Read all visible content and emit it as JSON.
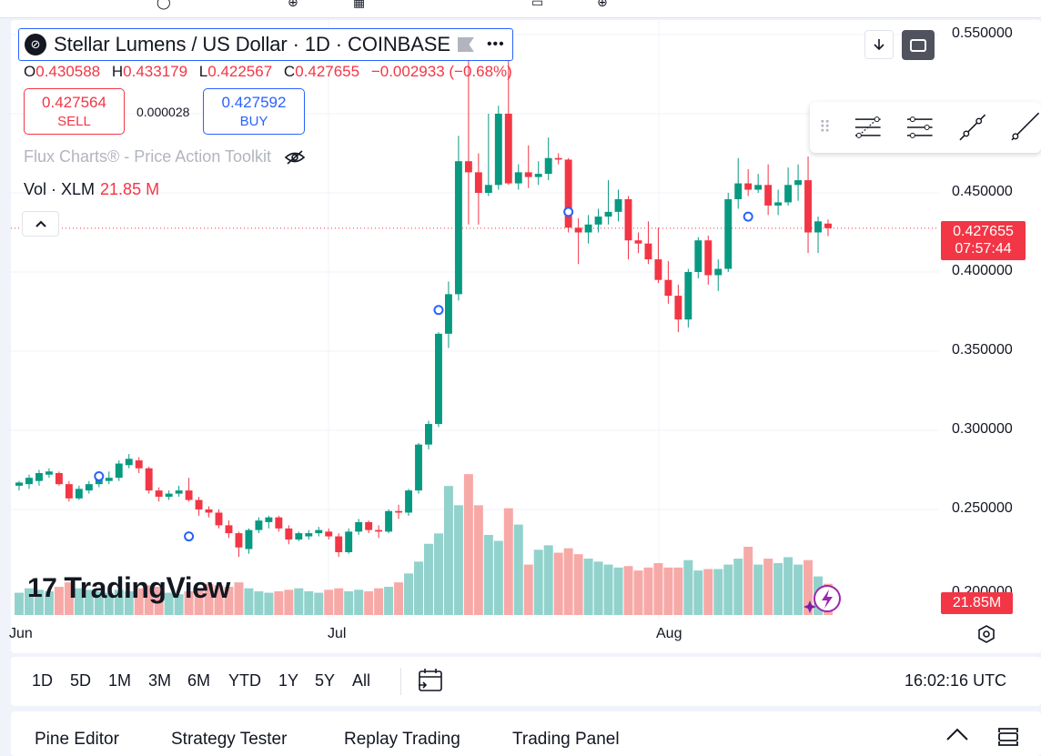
{
  "symbol": {
    "title": "Stellar Lumens / US Dollar · 1D · COINBASE",
    "logo_icon": "stellar-logo-icon",
    "flag_icon": "flag-icon",
    "more_icon": "more-dots-icon"
  },
  "ohlc": {
    "o_label": "O",
    "o_value": "0.430588",
    "h_label": "H",
    "h_value": "0.433179",
    "l_label": "L",
    "l_value": "0.422567",
    "c_label": "C",
    "c_value": "0.427655",
    "change": "−0.002933 (−0.68%)"
  },
  "trade": {
    "sell_price": "0.427564",
    "sell_label": "SELL",
    "spread": "0.000028",
    "buy_price": "0.427592",
    "buy_label": "BUY"
  },
  "indicator": {
    "name": "Flux Charts® - Price Action Toolkit",
    "hide_icon": "eye-crossed-icon"
  },
  "volume": {
    "label": "Vol · XLM",
    "value": "21.85 M"
  },
  "brand": {
    "name": "TradingView",
    "mark": "17"
  },
  "price_axis": {
    "labels": [
      "0.550000",
      "0.450000",
      "0.400000",
      "0.350000",
      "0.300000",
      "0.250000",
      "0.200000"
    ],
    "last_price": "0.427655",
    "countdown": "07:57:44",
    "volume_tag": "21.85M"
  },
  "time_axis": {
    "labels": [
      "Jun",
      "Jul",
      "Aug"
    ]
  },
  "periods": [
    "1D",
    "5D",
    "1M",
    "3M",
    "6M",
    "YTD",
    "1Y",
    "5Y",
    "All"
  ],
  "clock": "16:02:16 UTC",
  "bottom_tabs": [
    "Pine Editor",
    "Strategy Tester",
    "Replay Trading",
    "Trading Panel"
  ],
  "colors": {
    "up": "#089981",
    "down": "#f23645",
    "vol_up": "#92d2cc",
    "vol_down": "#f7a9a7",
    "accent": "#2962ff"
  },
  "chart_data": {
    "type": "candlestick",
    "symbol": "XLMUSD",
    "interval": "1D",
    "ylim": [
      0.18,
      0.56
    ],
    "candles": [
      {
        "o": 0.265,
        "h": 0.268,
        "l": 0.262,
        "c": 0.267
      },
      {
        "o": 0.266,
        "h": 0.272,
        "l": 0.263,
        "c": 0.27
      },
      {
        "o": 0.268,
        "h": 0.275,
        "l": 0.265,
        "c": 0.273
      },
      {
        "o": 0.272,
        "h": 0.276,
        "l": 0.27,
        "c": 0.274
      },
      {
        "o": 0.273,
        "h": 0.274,
        "l": 0.265,
        "c": 0.266
      },
      {
        "o": 0.266,
        "h": 0.268,
        "l": 0.255,
        "c": 0.257
      },
      {
        "o": 0.257,
        "h": 0.265,
        "l": 0.256,
        "c": 0.263
      },
      {
        "o": 0.262,
        "h": 0.268,
        "l": 0.26,
        "c": 0.266
      },
      {
        "o": 0.266,
        "h": 0.272,
        "l": 0.264,
        "c": 0.27
      },
      {
        "o": 0.268,
        "h": 0.274,
        "l": 0.266,
        "c": 0.27
      },
      {
        "o": 0.27,
        "h": 0.281,
        "l": 0.268,
        "c": 0.279
      },
      {
        "o": 0.278,
        "h": 0.285,
        "l": 0.276,
        "c": 0.282
      },
      {
        "o": 0.281,
        "h": 0.283,
        "l": 0.273,
        "c": 0.276
      },
      {
        "o": 0.276,
        "h": 0.277,
        "l": 0.26,
        "c": 0.262
      },
      {
        "o": 0.262,
        "h": 0.264,
        "l": 0.255,
        "c": 0.258
      },
      {
        "o": 0.258,
        "h": 0.262,
        "l": 0.256,
        "c": 0.26
      },
      {
        "o": 0.26,
        "h": 0.265,
        "l": 0.258,
        "c": 0.262
      },
      {
        "o": 0.262,
        "h": 0.27,
        "l": 0.255,
        "c": 0.256
      },
      {
        "o": 0.256,
        "h": 0.258,
        "l": 0.246,
        "c": 0.25
      },
      {
        "o": 0.25,
        "h": 0.252,
        "l": 0.245,
        "c": 0.248
      },
      {
        "o": 0.248,
        "h": 0.25,
        "l": 0.238,
        "c": 0.24
      },
      {
        "o": 0.24,
        "h": 0.243,
        "l": 0.232,
        "c": 0.235
      },
      {
        "o": 0.235,
        "h": 0.236,
        "l": 0.22,
        "c": 0.226
      },
      {
        "o": 0.225,
        "h": 0.238,
        "l": 0.222,
        "c": 0.237
      },
      {
        "o": 0.237,
        "h": 0.245,
        "l": 0.235,
        "c": 0.243
      },
      {
        "o": 0.242,
        "h": 0.246,
        "l": 0.238,
        "c": 0.245
      },
      {
        "o": 0.245,
        "h": 0.246,
        "l": 0.236,
        "c": 0.238
      },
      {
        "o": 0.238,
        "h": 0.24,
        "l": 0.228,
        "c": 0.231
      },
      {
        "o": 0.231,
        "h": 0.236,
        "l": 0.23,
        "c": 0.235
      },
      {
        "o": 0.233,
        "h": 0.237,
        "l": 0.231,
        "c": 0.235
      },
      {
        "o": 0.235,
        "h": 0.239,
        "l": 0.233,
        "c": 0.237
      },
      {
        "o": 0.236,
        "h": 0.238,
        "l": 0.231,
        "c": 0.233
      },
      {
        "o": 0.233,
        "h": 0.235,
        "l": 0.22,
        "c": 0.223
      },
      {
        "o": 0.223,
        "h": 0.238,
        "l": 0.222,
        "c": 0.236
      },
      {
        "o": 0.236,
        "h": 0.244,
        "l": 0.234,
        "c": 0.242
      },
      {
        "o": 0.242,
        "h": 0.243,
        "l": 0.235,
        "c": 0.237
      },
      {
        "o": 0.237,
        "h": 0.24,
        "l": 0.232,
        "c": 0.236
      },
      {
        "o": 0.236,
        "h": 0.25,
        "l": 0.235,
        "c": 0.249
      },
      {
        "o": 0.249,
        "h": 0.253,
        "l": 0.244,
        "c": 0.248
      },
      {
        "o": 0.248,
        "h": 0.263,
        "l": 0.246,
        "c": 0.262
      },
      {
        "o": 0.262,
        "h": 0.292,
        "l": 0.26,
        "c": 0.291
      },
      {
        "o": 0.291,
        "h": 0.306,
        "l": 0.288,
        "c": 0.304
      },
      {
        "o": 0.304,
        "h": 0.362,
        "l": 0.302,
        "c": 0.361
      },
      {
        "o": 0.361,
        "h": 0.394,
        "l": 0.352,
        "c": 0.386
      },
      {
        "o": 0.386,
        "h": 0.486,
        "l": 0.382,
        "c": 0.47
      },
      {
        "o": 0.47,
        "h": 0.545,
        "l": 0.43,
        "c": 0.463
      },
      {
        "o": 0.463,
        "h": 0.475,
        "l": 0.43,
        "c": 0.45
      },
      {
        "o": 0.45,
        "h": 0.5,
        "l": 0.448,
        "c": 0.455
      },
      {
        "o": 0.455,
        "h": 0.505,
        "l": 0.452,
        "c": 0.5
      },
      {
        "o": 0.5,
        "h": 0.545,
        "l": 0.455,
        "c": 0.456
      },
      {
        "o": 0.456,
        "h": 0.468,
        "l": 0.452,
        "c": 0.463
      },
      {
        "o": 0.463,
        "h": 0.48,
        "l": 0.453,
        "c": 0.46
      },
      {
        "o": 0.46,
        "h": 0.47,
        "l": 0.455,
        "c": 0.462
      },
      {
        "o": 0.462,
        "h": 0.485,
        "l": 0.458,
        "c": 0.472
      },
      {
        "o": 0.472,
        "h": 0.475,
        "l": 0.468,
        "c": 0.471
      },
      {
        "o": 0.471,
        "h": 0.472,
        "l": 0.425,
        "c": 0.428
      },
      {
        "o": 0.428,
        "h": 0.434,
        "l": 0.405,
        "c": 0.425
      },
      {
        "o": 0.425,
        "h": 0.436,
        "l": 0.418,
        "c": 0.43
      },
      {
        "o": 0.43,
        "h": 0.44,
        "l": 0.425,
        "c": 0.435
      },
      {
        "o": 0.435,
        "h": 0.458,
        "l": 0.43,
        "c": 0.438
      },
      {
        "o": 0.438,
        "h": 0.452,
        "l": 0.432,
        "c": 0.446
      },
      {
        "o": 0.446,
        "h": 0.448,
        "l": 0.408,
        "c": 0.42
      },
      {
        "o": 0.42,
        "h": 0.425,
        "l": 0.412,
        "c": 0.418
      },
      {
        "o": 0.418,
        "h": 0.432,
        "l": 0.405,
        "c": 0.408
      },
      {
        "o": 0.408,
        "h": 0.428,
        "l": 0.393,
        "c": 0.395
      },
      {
        "o": 0.395,
        "h": 0.407,
        "l": 0.38,
        "c": 0.385
      },
      {
        "o": 0.385,
        "h": 0.392,
        "l": 0.362,
        "c": 0.37
      },
      {
        "o": 0.37,
        "h": 0.402,
        "l": 0.365,
        "c": 0.4
      },
      {
        "o": 0.4,
        "h": 0.422,
        "l": 0.396,
        "c": 0.42
      },
      {
        "o": 0.42,
        "h": 0.423,
        "l": 0.392,
        "c": 0.398
      },
      {
        "o": 0.398,
        "h": 0.408,
        "l": 0.388,
        "c": 0.402
      },
      {
        "o": 0.402,
        "h": 0.45,
        "l": 0.4,
        "c": 0.446
      },
      {
        "o": 0.446,
        "h": 0.472,
        "l": 0.44,
        "c": 0.456
      },
      {
        "o": 0.456,
        "h": 0.465,
        "l": 0.448,
        "c": 0.452
      },
      {
        "o": 0.452,
        "h": 0.462,
        "l": 0.45,
        "c": 0.455
      },
      {
        "o": 0.455,
        "h": 0.468,
        "l": 0.436,
        "c": 0.442
      },
      {
        "o": 0.442,
        "h": 0.452,
        "l": 0.436,
        "c": 0.444
      },
      {
        "o": 0.444,
        "h": 0.466,
        "l": 0.442,
        "c": 0.455
      },
      {
        "o": 0.455,
        "h": 0.468,
        "l": 0.445,
        "c": 0.458
      },
      {
        "o": 0.458,
        "h": 0.473,
        "l": 0.412,
        "c": 0.425
      },
      {
        "o": 0.425,
        "h": 0.435,
        "l": 0.412,
        "c": 0.432
      },
      {
        "o": 0.4306,
        "h": 0.4332,
        "l": 0.4226,
        "c": 0.4277
      }
    ],
    "volume_relative": [
      0.15,
      0.18,
      0.17,
      0.16,
      0.19,
      0.22,
      0.18,
      0.17,
      0.16,
      0.15,
      0.17,
      0.16,
      0.18,
      0.2,
      0.19,
      0.15,
      0.14,
      0.16,
      0.18,
      0.21,
      0.2,
      0.19,
      0.22,
      0.18,
      0.16,
      0.15,
      0.16,
      0.17,
      0.18,
      0.16,
      0.15,
      0.17,
      0.18,
      0.16,
      0.17,
      0.16,
      0.18,
      0.19,
      0.22,
      0.28,
      0.36,
      0.48,
      0.55,
      0.87,
      0.74,
      0.95,
      0.74,
      0.54,
      0.5,
      0.72,
      0.61,
      0.34,
      0.44,
      0.47,
      0.42,
      0.45,
      0.41,
      0.38,
      0.36,
      0.34,
      0.32,
      0.33,
      0.3,
      0.32,
      0.35,
      0.32,
      0.32,
      0.37,
      0.3,
      0.31,
      0.31,
      0.34,
      0.38,
      0.46,
      0.34,
      0.38,
      0.35,
      0.39,
      0.34,
      0.37,
      0.26,
      0.21
    ],
    "markers": [
      {
        "index": 8,
        "price": 0.271
      },
      {
        "index": 17,
        "price": 0.233
      },
      {
        "index": 42,
        "price": 0.376
      },
      {
        "index": 55,
        "price": 0.438
      },
      {
        "index": 73,
        "price": 0.435
      }
    ],
    "y_ticks": [
      0.55,
      0.45,
      0.4,
      0.35,
      0.3,
      0.25,
      0.2
    ],
    "x_ticks": [
      "Jun",
      "Jul",
      "Aug"
    ],
    "last_price": 0.427655
  }
}
